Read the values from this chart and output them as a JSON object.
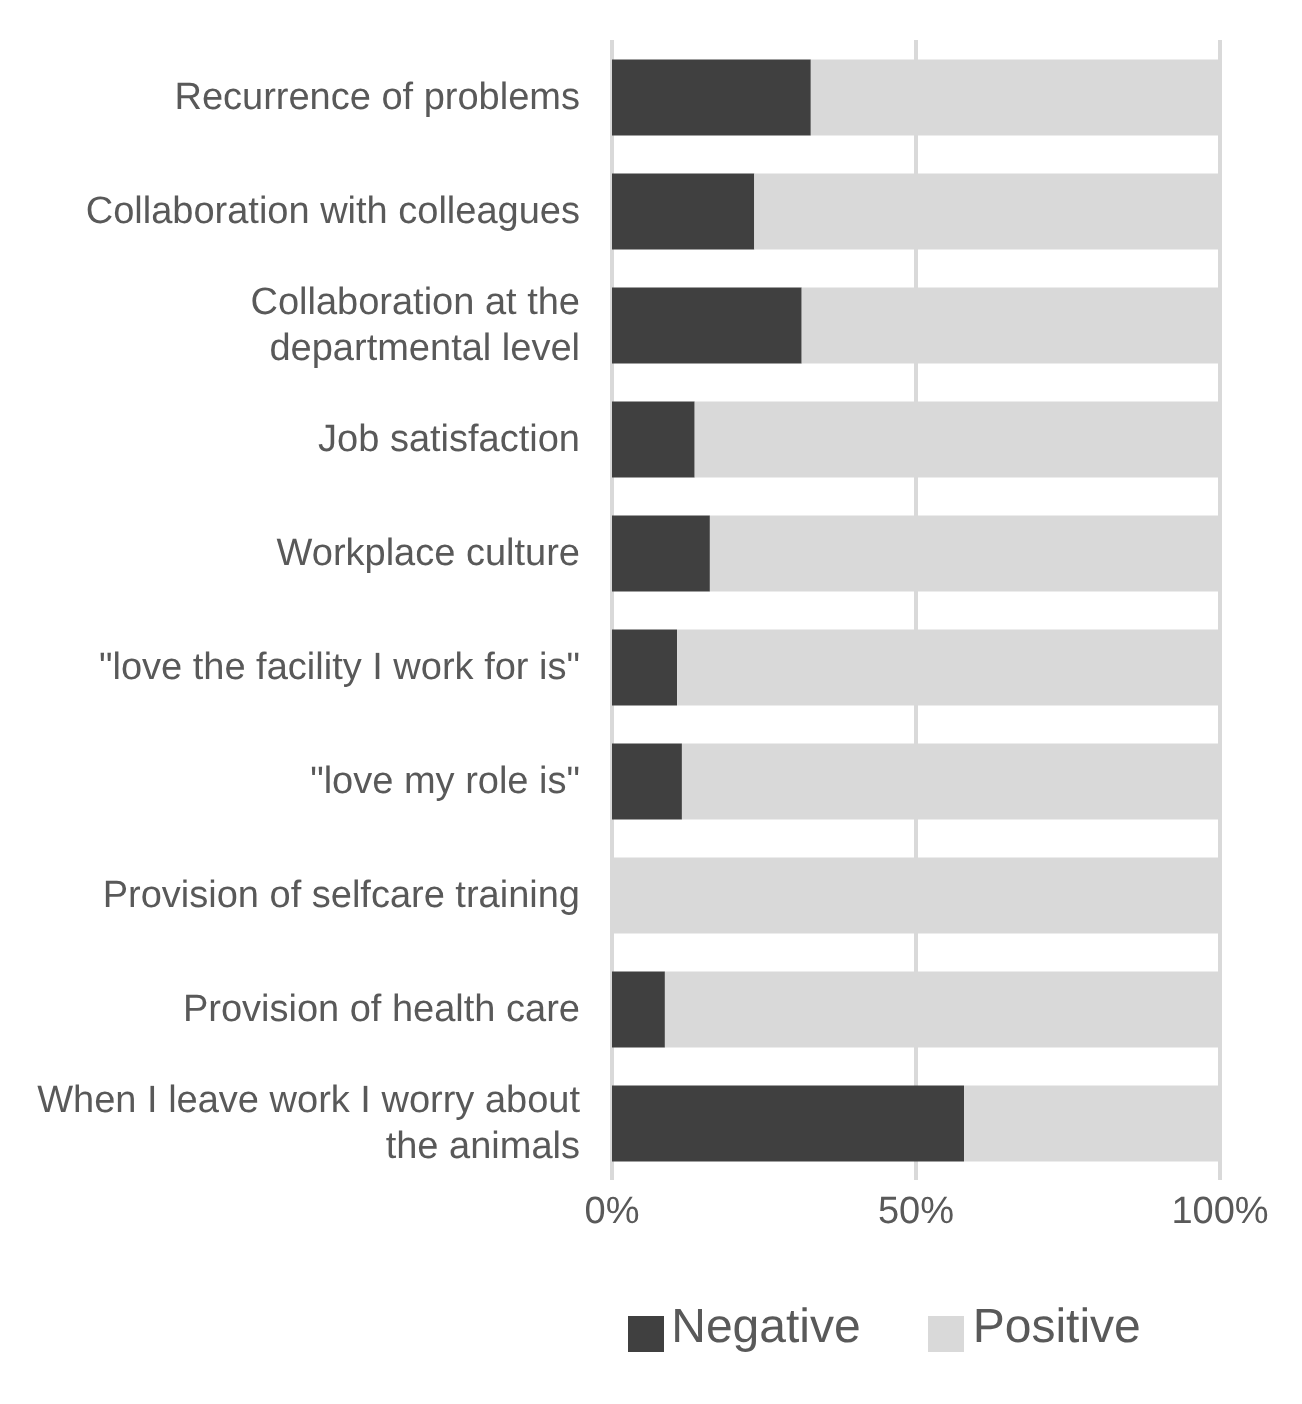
{
  "chart_data": {
    "type": "bar",
    "orientation": "horizontal",
    "stacked": true,
    "categories": [
      "Recurrence of problems",
      "Collaboration with colleagues",
      "Collaboration at the departmental level",
      "Job satisfaction",
      "Workplace culture",
      "\"love the facility I work for is\"",
      "\"love my role is\"",
      "Provision of selfcare training",
      "Provision of health care",
      "When I leave work I worry about the animals"
    ],
    "series": [
      {
        "name": "Negative",
        "color": "#404040",
        "values": [
          32.7,
          23.4,
          31.2,
          13.6,
          16.1,
          10.7,
          11.5,
          0,
          8.7,
          57.9
        ]
      },
      {
        "name": "Positive",
        "color": "#d9d9d9",
        "values": [
          67.3,
          76.6,
          68.8,
          86.4,
          83.9,
          89.3,
          88.5,
          100,
          91.3,
          42.1
        ]
      }
    ],
    "xlim": [
      0,
      100
    ],
    "xticks": [
      {
        "value": 0,
        "label": "0%"
      },
      {
        "value": 50,
        "label": "50%"
      },
      {
        "value": 100,
        "label": "100%"
      }
    ],
    "grid": "x",
    "legend": "bottom"
  }
}
